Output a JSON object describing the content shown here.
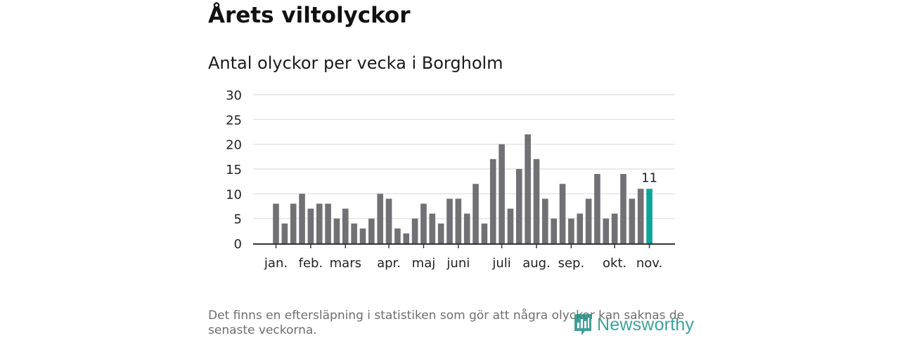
{
  "header": {
    "title": "Årets viltolyckor",
    "subtitle": "Antal olyckor per vecka i Borgholm"
  },
  "chart_data": {
    "type": "bar",
    "ylim": [
      0,
      30
    ],
    "yticks": [
      0,
      5,
      10,
      15,
      20,
      25,
      30
    ],
    "grid": true,
    "values": [
      8,
      4,
      8,
      10,
      7,
      8,
      8,
      5,
      7,
      4,
      3,
      5,
      10,
      9,
      3,
      2,
      5,
      8,
      6,
      4,
      9,
      9,
      6,
      12,
      4,
      17,
      20,
      7,
      15,
      22,
      17,
      9,
      5,
      12,
      5,
      6,
      9,
      14,
      5,
      6,
      14,
      9,
      11,
      11
    ],
    "highlight_index": 43,
    "highlight_label": "11",
    "month_ticks": [
      {
        "label": "jan.",
        "week_index": 0
      },
      {
        "label": "feb.",
        "week_index": 4
      },
      {
        "label": "mars",
        "week_index": 8
      },
      {
        "label": "apr.",
        "week_index": 13
      },
      {
        "label": "maj",
        "week_index": 17
      },
      {
        "label": "juni",
        "week_index": 21
      },
      {
        "label": "juli",
        "week_index": 26
      },
      {
        "label": "aug.",
        "week_index": 30
      },
      {
        "label": "sep.",
        "week_index": 34
      },
      {
        "label": "okt.",
        "week_index": 39
      },
      {
        "label": "nov.",
        "week_index": 43
      }
    ],
    "colors": {
      "bar": "#707075",
      "highlight": "#0fa39a",
      "grid": "#dedede",
      "axis": "#333333"
    }
  },
  "footer": {
    "note": "Det finns en eftersläpning i statistiken som gör att några olyckor kan saknas de senaste veckorna.",
    "brand": "Newsworthy"
  }
}
